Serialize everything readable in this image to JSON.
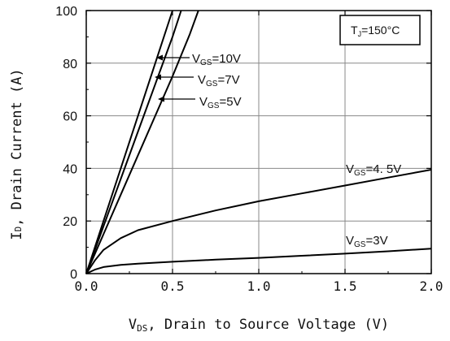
{
  "chart_data": {
    "type": "line",
    "title": "",
    "xlabel": {
      "prefix": "V",
      "sub": "DS",
      "rest": ", Drain to Source Voltage (V)"
    },
    "ylabel": {
      "prefix": "I",
      "sub": "D",
      "rest": ", Drain Current (A)"
    },
    "xlim": [
      0,
      2.0
    ],
    "ylim": [
      0,
      100
    ],
    "x_ticks": [
      0.0,
      0.5,
      1.0,
      1.5,
      2.0
    ],
    "x_tick_labels": [
      "0.0",
      "0.5",
      "1.0",
      "1.5",
      "2.0"
    ],
    "y_ticks": [
      0,
      20,
      40,
      60,
      80,
      100
    ],
    "y_tick_labels": [
      "0",
      "20",
      "40",
      "60",
      "80",
      "100"
    ],
    "grid": true,
    "condition_box": {
      "prefix": "T",
      "sub": "J",
      "rest": "=150°C"
    },
    "series": [
      {
        "name": "VGS=10V",
        "label": {
          "prefix": "V",
          "sub": "GS",
          "rest": "=10V"
        },
        "x": [
          0,
          0.1,
          0.2,
          0.3,
          0.4,
          0.5
        ],
        "y": [
          0,
          20,
          40,
          60,
          80,
          100
        ]
      },
      {
        "name": "VGS=7V",
        "label": {
          "prefix": "V",
          "sub": "GS",
          "rest": "=7V"
        },
        "x": [
          0,
          0.1,
          0.2,
          0.3,
          0.4,
          0.5,
          0.55
        ],
        "y": [
          0,
          18,
          36,
          54,
          72,
          90,
          100
        ]
      },
      {
        "name": "VGS=5V",
        "label": {
          "prefix": "V",
          "sub": "GS",
          "rest": "=5V"
        },
        "x": [
          0,
          0.1,
          0.2,
          0.3,
          0.4,
          0.5,
          0.6,
          0.65
        ],
        "y": [
          0,
          15,
          30,
          45,
          60,
          75,
          91,
          100
        ]
      },
      {
        "name": "VGS=4.5V",
        "label": {
          "prefix": "V",
          "sub": "GS",
          "rest": "=4. 5V"
        },
        "x": [
          0,
          0.05,
          0.1,
          0.2,
          0.3,
          0.5,
          0.75,
          1.0,
          1.25,
          1.5,
          1.75,
          2.0
        ],
        "y": [
          0,
          5,
          9,
          13.5,
          16.5,
          20,
          24,
          27.5,
          30.5,
          33.5,
          36.5,
          39.5
        ]
      },
      {
        "name": "VGS=3V",
        "label": {
          "prefix": "V",
          "sub": "GS",
          "rest": "=3V"
        },
        "x": [
          0,
          0.05,
          0.1,
          0.2,
          0.3,
          0.5,
          0.75,
          1.0,
          1.25,
          1.5,
          1.75,
          2.0
        ],
        "y": [
          0,
          1.5,
          2.5,
          3.3,
          3.8,
          4.5,
          5.3,
          6.0,
          6.8,
          7.6,
          8.5,
          9.5
        ]
      }
    ]
  }
}
